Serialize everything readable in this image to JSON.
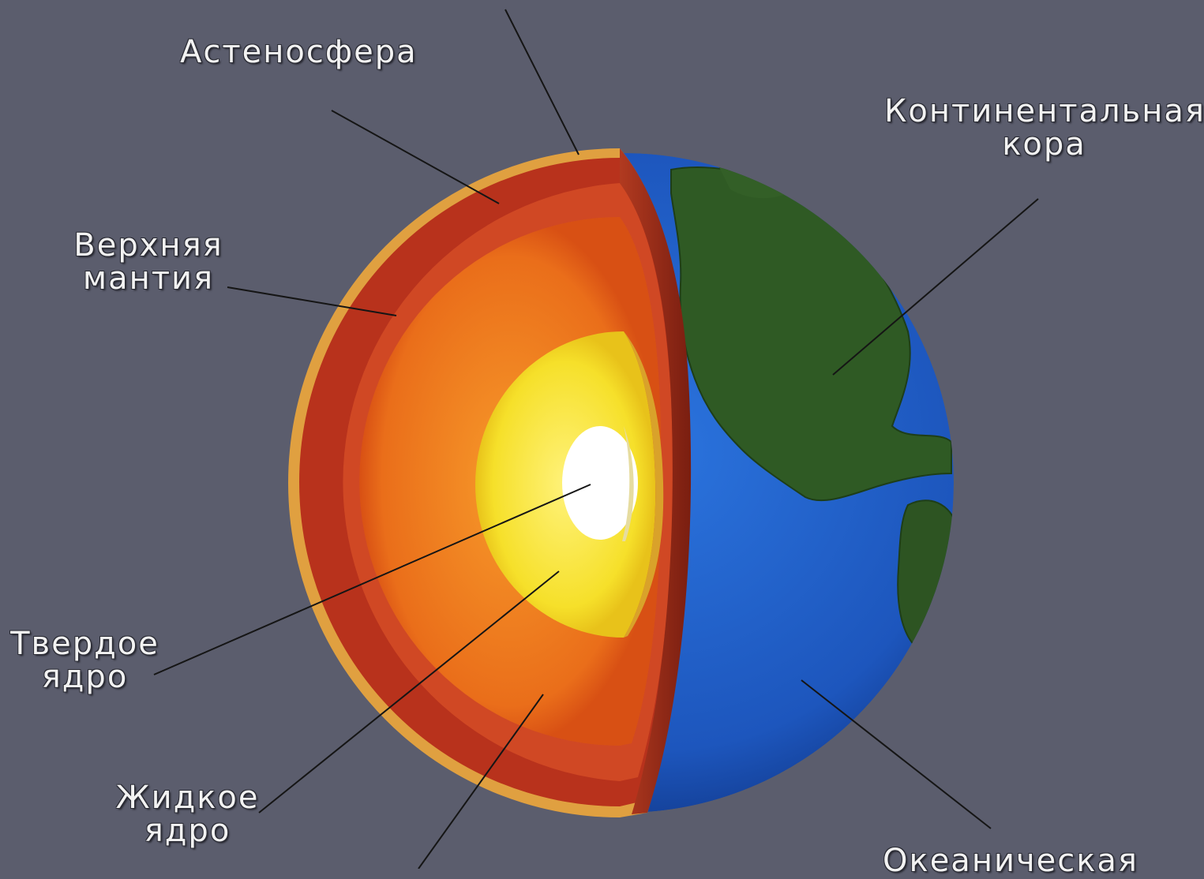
{
  "labels": {
    "asthenosphere": "Астеносфера",
    "continental_crust": "Континентальная\nкора",
    "upper_mantle": "Верхняя\nмантия",
    "solid_core": "Твердое\nядро",
    "liquid_core": "Жидкое\nядро",
    "oceanic_crust": "Океаническая"
  },
  "colors": {
    "background": "#5b5d6d",
    "crust_rim": "#e0a040",
    "upper_mantle": "#b8321c",
    "lower_mantle": "#ee7a1e",
    "outer_core": "#f6e430",
    "inner_core": "#ffffff",
    "ocean": "#1f5fc8",
    "land": "#2f5a24"
  }
}
